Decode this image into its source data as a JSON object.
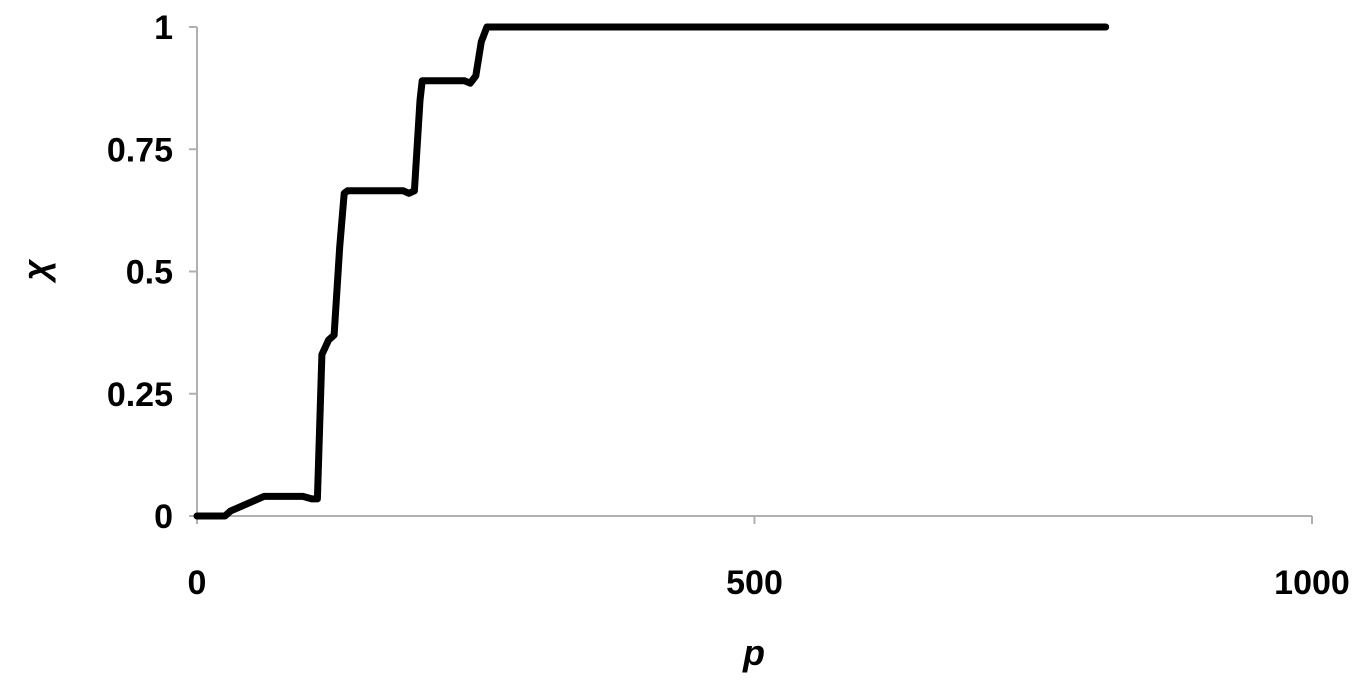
{
  "chart_data": {
    "type": "line",
    "title": "",
    "xlabel": "p",
    "ylabel": "χ",
    "xlim": [
      0,
      1000
    ],
    "ylim": [
      0,
      1
    ],
    "x_ticks": [
      "0",
      "500",
      "1000"
    ],
    "x_tick_values": [
      0,
      500,
      1000
    ],
    "y_ticks": [
      "0",
      "0.25",
      "0.5",
      "0.75",
      "1"
    ],
    "y_tick_values": [
      0,
      0.25,
      0.5,
      0.75,
      1
    ],
    "grid": false,
    "legend": "none",
    "series": [
      {
        "color": "#000000",
        "x": [
          0,
          25,
          30,
          50,
          60,
          95,
          103,
          108,
          112,
          118,
          123,
          128,
          132,
          135,
          150,
          185,
          190,
          195,
          200,
          202,
          206,
          240,
          245,
          250,
          255,
          260,
          300,
          400,
          500,
          600,
          700,
          815
        ],
        "y": [
          0,
          0,
          0.01,
          0.03,
          0.04,
          0.04,
          0.035,
          0.035,
          0.33,
          0.36,
          0.37,
          0.55,
          0.66,
          0.665,
          0.665,
          0.665,
          0.66,
          0.665,
          0.85,
          0.89,
          0.89,
          0.89,
          0.885,
          0.9,
          0.97,
          1,
          1,
          1,
          1,
          1,
          1,
          1
        ]
      }
    ]
  }
}
